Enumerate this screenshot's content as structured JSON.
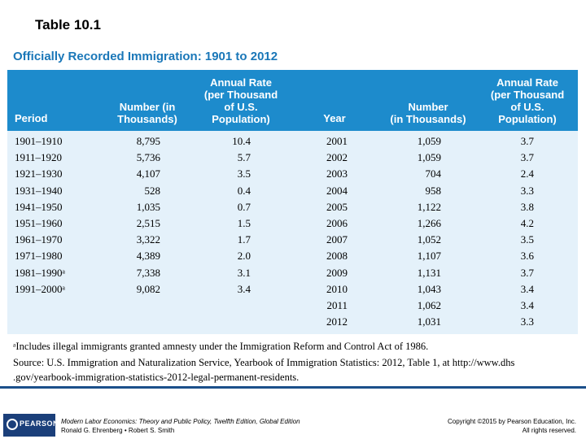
{
  "slide": {
    "title": "Table 10.1"
  },
  "table": {
    "caption": "Officially Recorded Immigration: 1901 to 2012",
    "headers": {
      "period": "Period",
      "number1": "Number (in\nThousands)",
      "rate1": "Annual Rate\n(per Thousand\nof U.S.\nPopulation)",
      "year": "Year",
      "number2": "Number\n(in Thousands)",
      "rate2": "Annual Rate\n(per Thousand\nof U.S.\nPopulation)"
    },
    "rows": [
      {
        "period": "1901–1910",
        "number": "8,795",
        "rate": "10.4",
        "year": "2001",
        "number2": "1,059",
        "rate2": "3.7"
      },
      {
        "period": "1911–1920",
        "number": "5,736",
        "rate": "5.7",
        "year": "2002",
        "number2": "1,059",
        "rate2": "3.7"
      },
      {
        "period": "1921–1930",
        "number": "4,107",
        "rate": "3.5",
        "year": "2003",
        "number2": "704",
        "rate2": "2.4"
      },
      {
        "period": "1931–1940",
        "number": "528",
        "rate": "0.4",
        "year": "2004",
        "number2": "958",
        "rate2": "3.3"
      },
      {
        "period": "1941–1950",
        "number": "1,035",
        "rate": "0.7",
        "year": "2005",
        "number2": "1,122",
        "rate2": "3.8"
      },
      {
        "period": "1951–1960",
        "number": "2,515",
        "rate": "1.5",
        "year": "2006",
        "number2": "1,266",
        "rate2": "4.2"
      },
      {
        "period": "1961–1970",
        "number": "3,322",
        "rate": "1.7",
        "year": "2007",
        "number2": "1,052",
        "rate2": "3.5"
      },
      {
        "period": "1971–1980",
        "number": "4,389",
        "rate": "2.0",
        "year": "2008",
        "number2": "1,107",
        "rate2": "3.6"
      },
      {
        "period": "1981–1990ᵃ",
        "number": "7,338",
        "rate": "3.1",
        "year": "2009",
        "number2": "1,131",
        "rate2": "3.7"
      },
      {
        "period": "1991–2000ᵃ",
        "number": "9,082",
        "rate": "3.4",
        "year": "2010",
        "number2": "1,043",
        "rate2": "3.4"
      },
      {
        "period": "",
        "number": "",
        "rate": "",
        "year": "2011",
        "number2": "1,062",
        "rate2": "3.4"
      },
      {
        "period": "",
        "number": "",
        "rate": "",
        "year": "2012",
        "number2": "1,031",
        "rate2": "3.3"
      }
    ],
    "footnote": "ᵃIncludes illegal immigrants granted amnesty under the Immigration Reform and Control Act of 1986.",
    "source_line1": "Source: U.S. Immigration and Naturalization Service, Yearbook of Immigration Statistics: 2012, Table 1, at http://www.dhs",
    "source_line2": ".gov/yearbook-immigration-statistics-2012-legal-permanent-residents."
  },
  "footer": {
    "logo": "PEARSON",
    "book_title": "Modern Labor Economics: Theory and Public Policy, Twelfth Edition, Global Edition",
    "authors": "Ronald G. Ehrenberg • Robert S. Smith",
    "copyright": "Copyright ©2015 by Pearson Education, Inc.",
    "rights": "All rights reserved."
  },
  "colors": {
    "caption": "#1a77b8",
    "header_band": "#1d8bcc",
    "table_bg": "#e4f1fa",
    "footer_rule": "#1b4f8a"
  }
}
